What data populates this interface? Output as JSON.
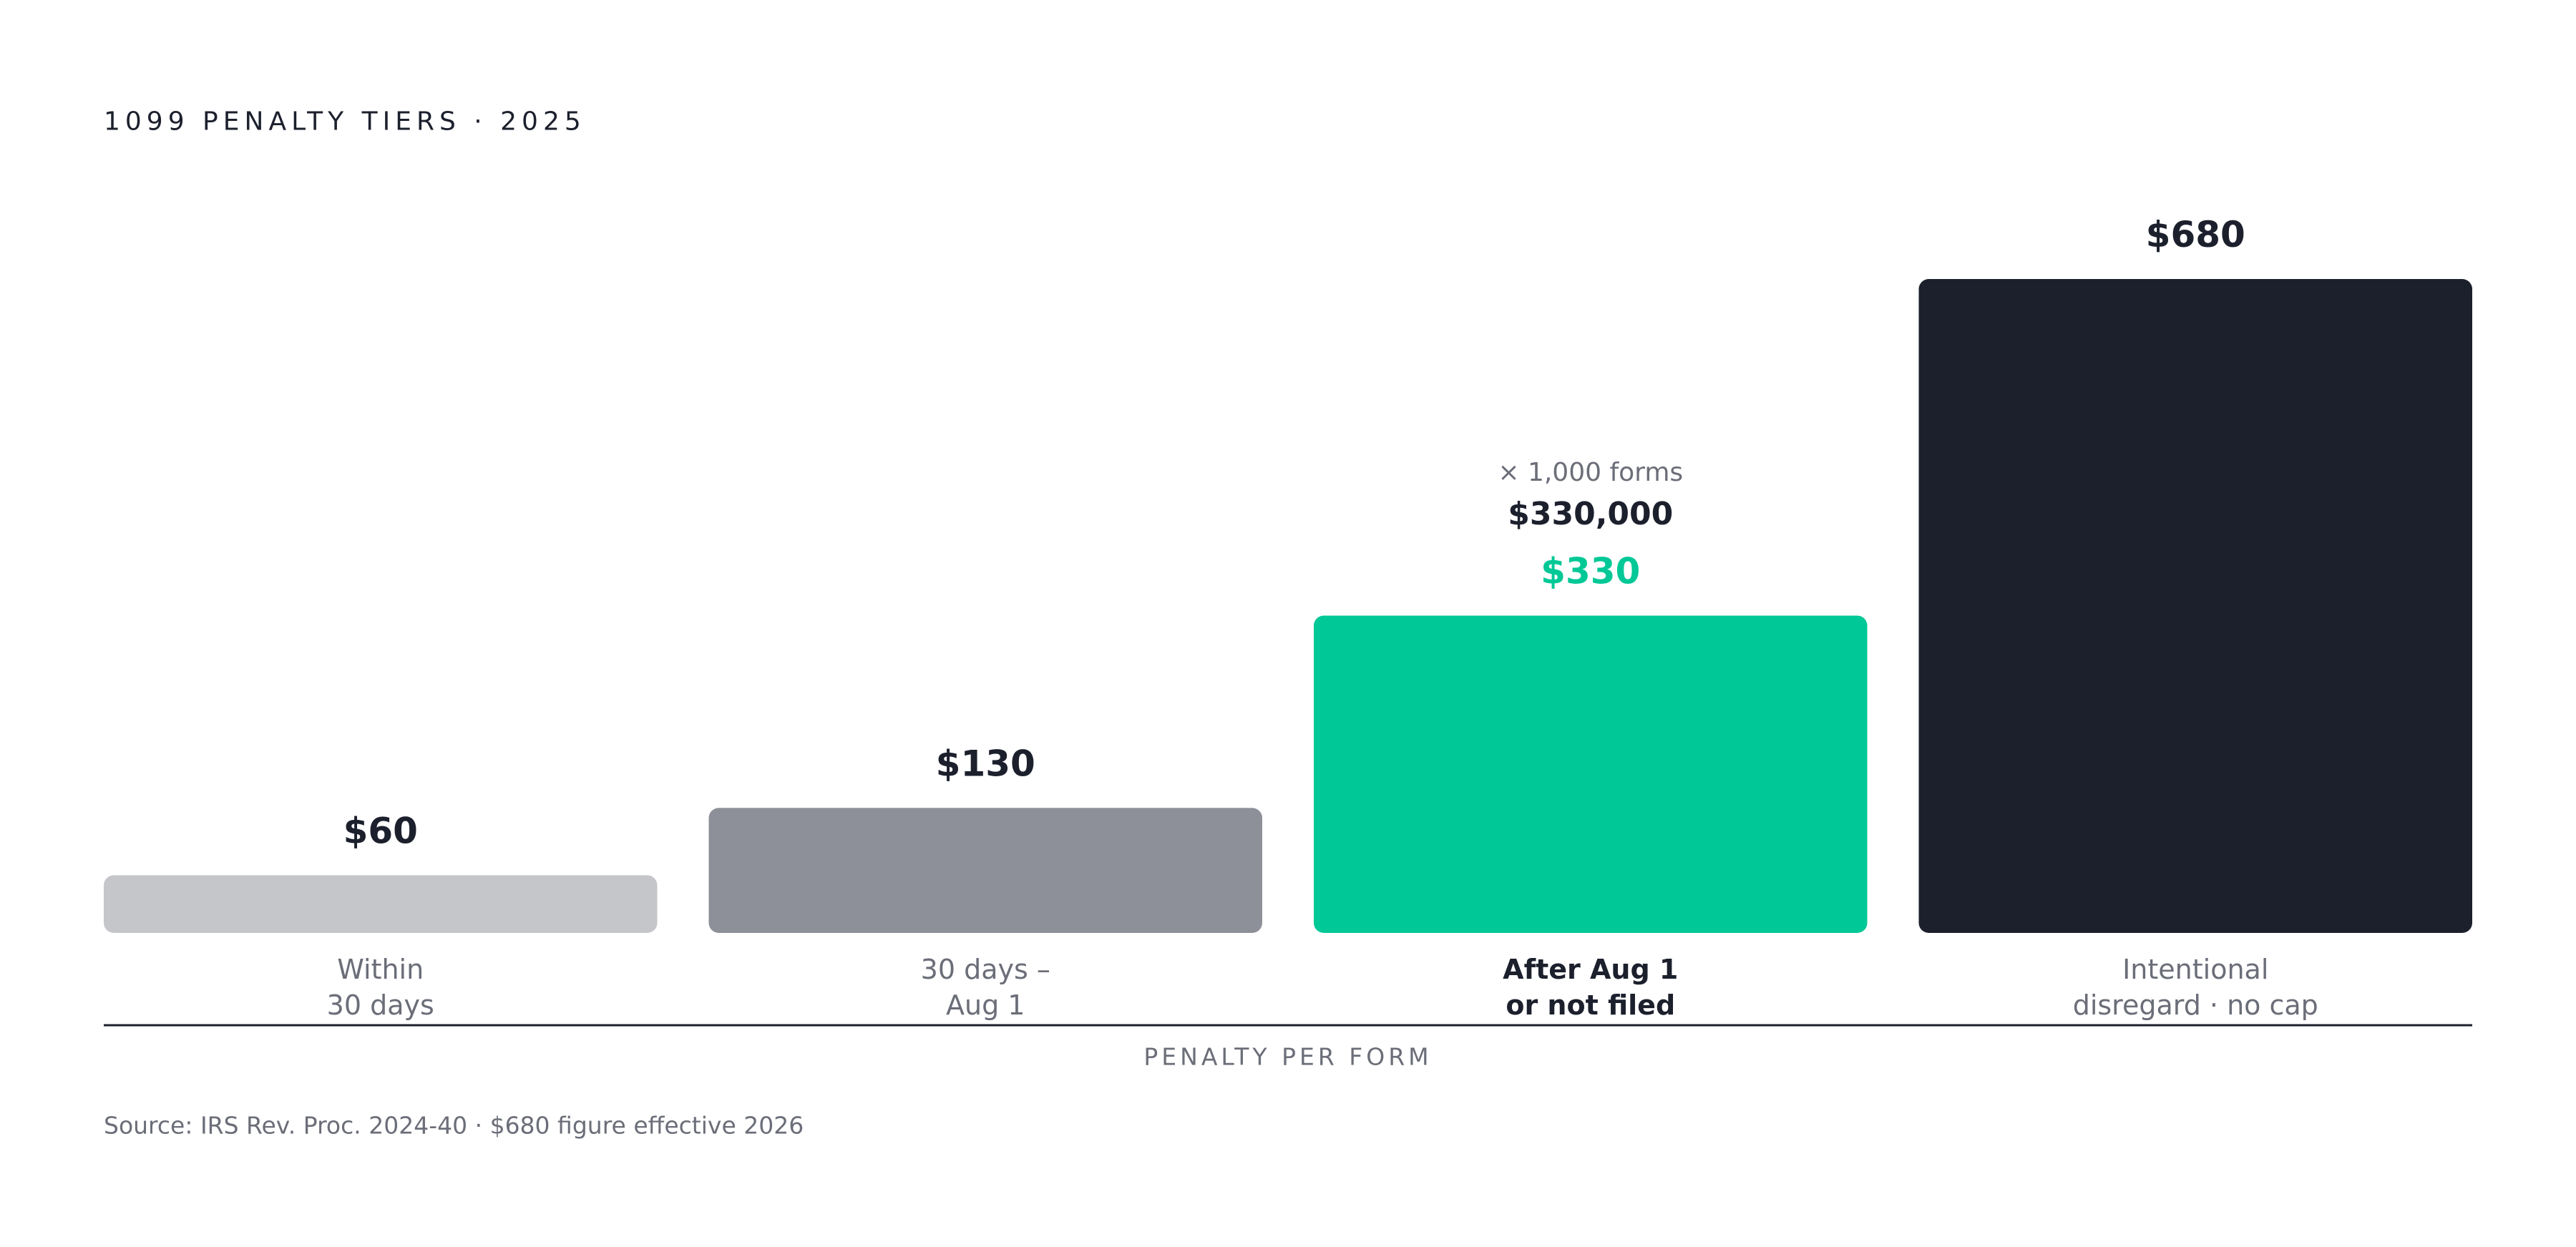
{
  "chart_data": {
    "type": "bar",
    "title": "1099 PENALTY TIERS · 2025",
    "categories": [
      [
        "Within",
        "30 days"
      ],
      [
        "30 days –",
        "Aug 1"
      ],
      [
        "After Aug 1",
        "or not filed"
      ],
      [
        "Intentional",
        "disregard · no cap"
      ]
    ],
    "values": [
      60,
      130,
      330,
      680
    ],
    "value_labels": [
      "$60",
      "$130",
      "$330",
      "$680"
    ],
    "colors": [
      "#c5c6ca",
      "#8d9098",
      "#00c896",
      "#1c202d"
    ],
    "highlight": 2,
    "annotation": {
      "multiplier": "× 1,000 forms",
      "total": "$330,000"
    },
    "x_label": "PENALTY PER FORM",
    "source": "Source: IRS Rev. Proc. 2024-40 · $680 figure effective 2026"
  }
}
